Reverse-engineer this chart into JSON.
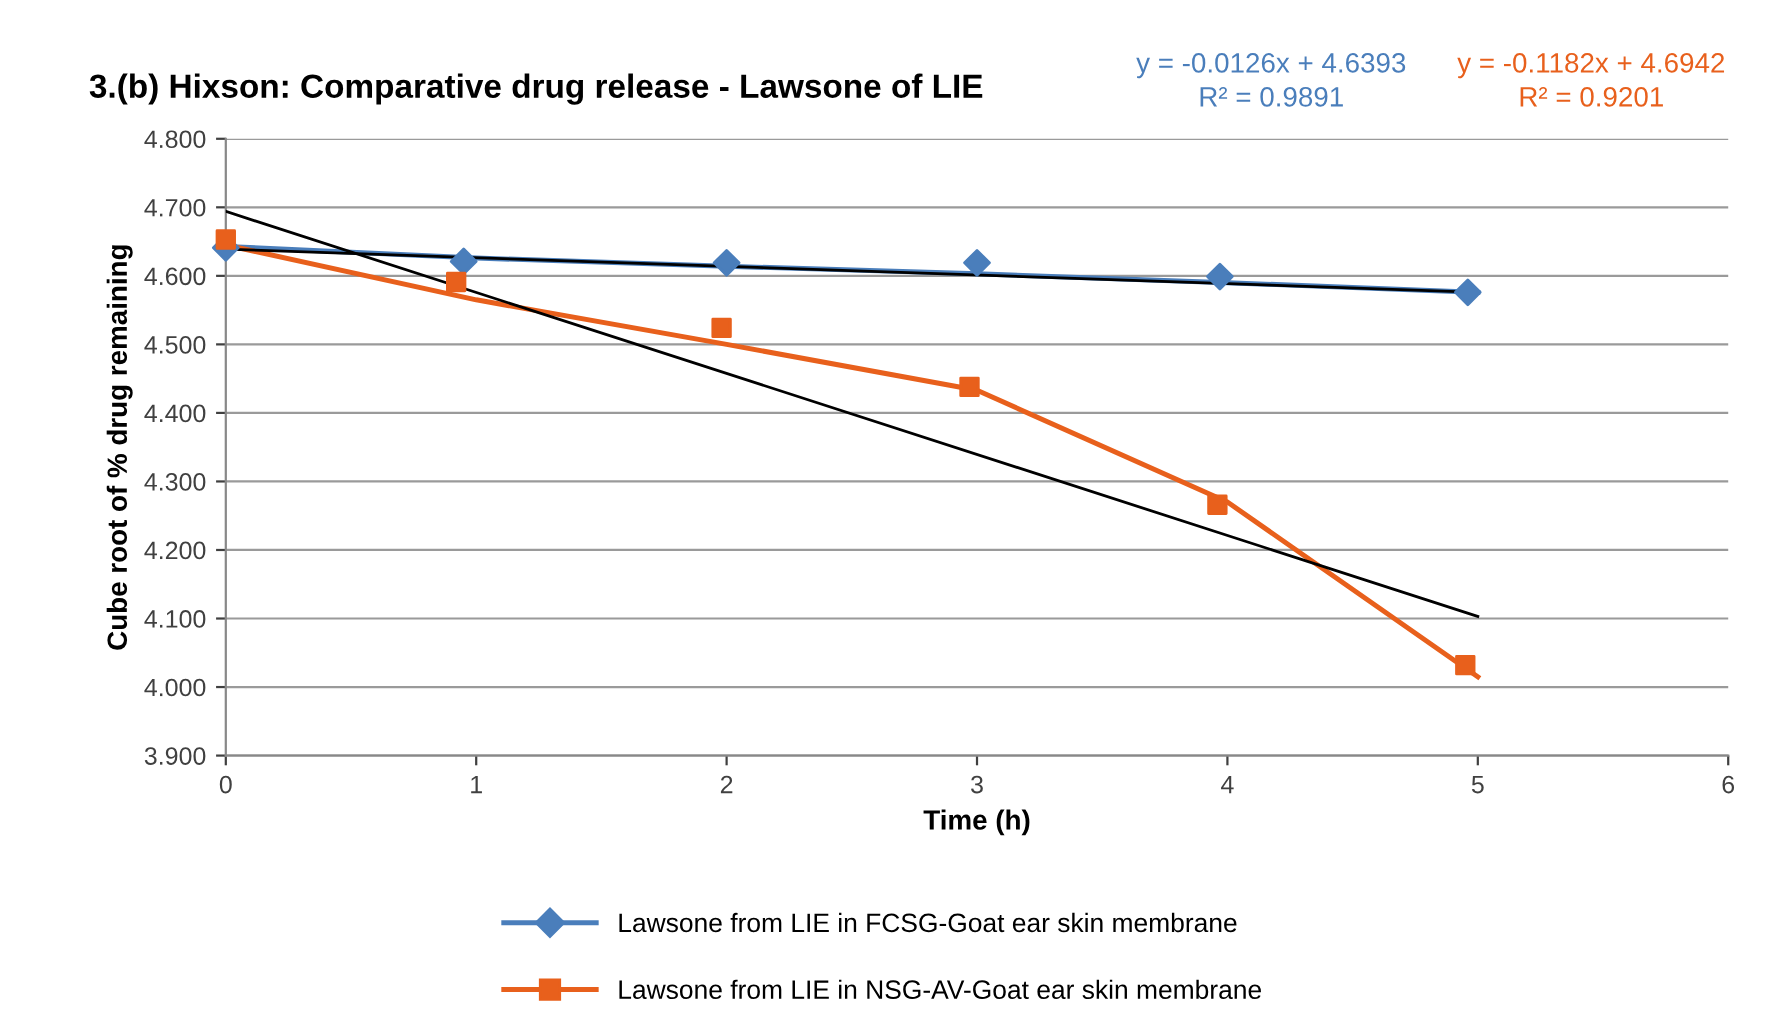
{
  "chart_data": {
    "type": "line",
    "title": "3.(b) Hixson: Comparative drug release - Lawsone of LIE",
    "xlabel": "Time (h)",
    "ylabel": "Cube root of % drug remaining",
    "series": [
      {
        "name": "Lawsone from LIE in FCSG-Goat ear skin membrane",
        "type": "scatter",
        "marker": "diamond",
        "color": "#4a7ebb",
        "x": [
          0,
          0.95,
          2,
          3,
          3.97,
          4.96
        ],
        "values": [
          4.641,
          4.621,
          4.619,
          4.619,
          4.599,
          4.576
        ]
      },
      {
        "name": "Lawsone from LIE in NSG-AV-Goat ear skin membrane",
        "type": "scatter",
        "marker": "square",
        "color": "#e8601c",
        "x": [
          0,
          0.92,
          1.98,
          2.97,
          3.96,
          4.95
        ],
        "values": [
          4.653,
          4.591,
          4.524,
          4.438,
          4.266,
          4.032
        ]
      },
      {
        "color": "#4a7ebb",
        "x": [
          0,
          1,
          2,
          3,
          4,
          5
        ],
        "values": [
          4.643,
          4.626,
          4.614,
          4.603,
          4.59,
          4.576
        ]
      },
      {
        "color": "#e8601c",
        "x": [
          0,
          1,
          2,
          3,
          4,
          5
        ],
        "values": [
          4.645,
          4.565,
          4.5,
          4.433,
          4.27,
          4.015
        ]
      },
      {
        "color": "#000000",
        "x": [
          0,
          5
        ],
        "values": [
          4.639,
          4.576
        ]
      },
      {
        "color": "#000000",
        "x": [
          0,
          5
        ],
        "values": [
          4.694,
          4.103
        ]
      }
    ],
    "xlim": [
      0,
      6
    ],
    "xticks": [
      0,
      1,
      2,
      3,
      4,
      5,
      6
    ],
    "ylim": [
      3.9,
      4.8
    ],
    "yticks": [
      {
        "value": 3.9,
        "label": "3.900"
      },
      {
        "value": 4.0,
        "label": "4.000"
      },
      {
        "value": 4.1,
        "label": "4.100"
      },
      {
        "value": 4.2,
        "label": "4.200"
      },
      {
        "value": 4.3,
        "label": "4.300"
      },
      {
        "value": 4.4,
        "label": "4.400"
      },
      {
        "value": 4.5,
        "label": "4.500"
      },
      {
        "value": 4.6,
        "label": "4.600"
      },
      {
        "value": 4.7,
        "label": "4.700"
      },
      {
        "value": 4.8,
        "label": "4.800"
      }
    ],
    "grid": "y",
    "legend": "bottom",
    "annotations": [
      "y = -0.0126x + 4.6393\nR² = 0.9891",
      "y = -0.1182x + 4.6942\nR² = 0.9201"
    ]
  }
}
